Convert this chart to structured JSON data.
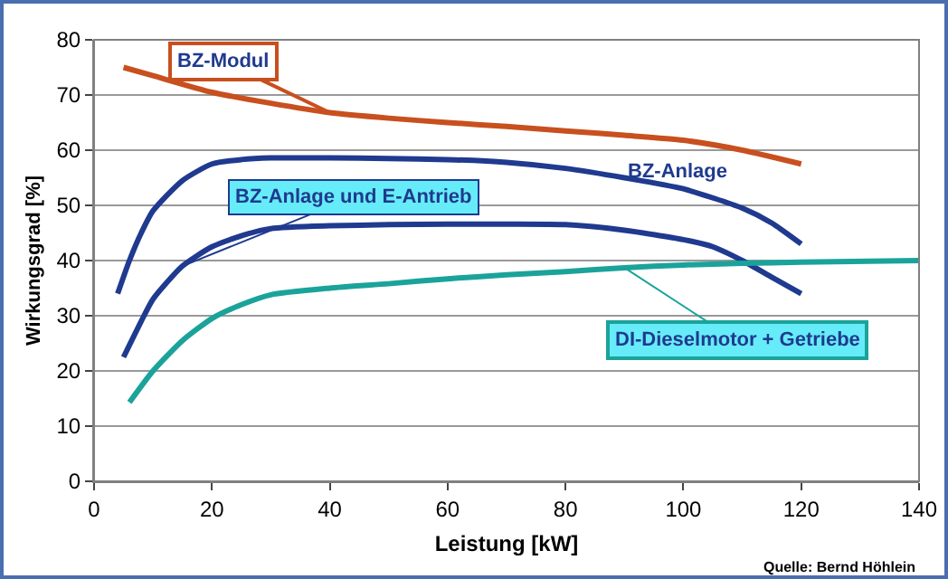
{
  "chart_data": {
    "type": "line",
    "xlabel": "Leistung [kW]",
    "ylabel": "Wirkungsgrad [%]",
    "xlim": [
      0,
      140
    ],
    "xticks": [
      0,
      20,
      40,
      60,
      80,
      100,
      120,
      140
    ],
    "ylim": [
      0,
      80
    ],
    "yticks": [
      0,
      10,
      20,
      30,
      40,
      50,
      60,
      70,
      80
    ],
    "grid": "y",
    "legend": false,
    "marker": "none",
    "line_style": "solid",
    "series": [
      {
        "name": "BZ-Modul",
        "color": "#c8501e",
        "x": [
          5,
          10,
          20,
          30,
          40,
          50,
          60,
          70,
          80,
          90,
          100,
          110,
          120
        ],
        "values": [
          75,
          73.5,
          70.5,
          68.5,
          66.8,
          65.8,
          65,
          64.3,
          63.5,
          62.7,
          61.8,
          60,
          57.5
        ]
      },
      {
        "name": "BZ-Anlage",
        "color": "#1f3a8f",
        "x": [
          4,
          6,
          8,
          10,
          15,
          20,
          25,
          30,
          40,
          50,
          60,
          70,
          80,
          90,
          100,
          110,
          115,
          120
        ],
        "values": [
          34,
          40,
          45,
          49,
          54.5,
          57.5,
          58.3,
          58.6,
          58.6,
          58.5,
          58.3,
          57.8,
          56.7,
          55,
          53,
          49.5,
          46.8,
          43
        ]
      },
      {
        "name": "BZ-Anlage und E-Antrieb",
        "color": "#1f3a8f",
        "x": [
          5,
          8,
          10,
          15,
          20,
          25,
          30,
          40,
          50,
          60,
          70,
          80,
          90,
          100,
          105,
          110,
          115,
          120
        ],
        "values": [
          22.5,
          29,
          33,
          39,
          42.5,
          44.5,
          45.8,
          46.3,
          46.5,
          46.6,
          46.6,
          46.5,
          45.5,
          43.8,
          42.5,
          40,
          37,
          34
        ]
      },
      {
        "name": "DI-Dieselmotor + Getriebe",
        "color": "#1aa39a",
        "x": [
          6,
          10,
          15,
          20,
          25,
          30,
          40,
          50,
          60,
          70,
          80,
          90,
          100,
          110,
          120,
          140
        ],
        "values": [
          14.3,
          20,
          25.5,
          29.5,
          32,
          33.8,
          35,
          35.8,
          36.7,
          37.4,
          38,
          38.7,
          39.2,
          39.5,
          39.7,
          40
        ]
      }
    ],
    "annotations": [
      "Quelle: Bernd Höhlein"
    ]
  }
}
